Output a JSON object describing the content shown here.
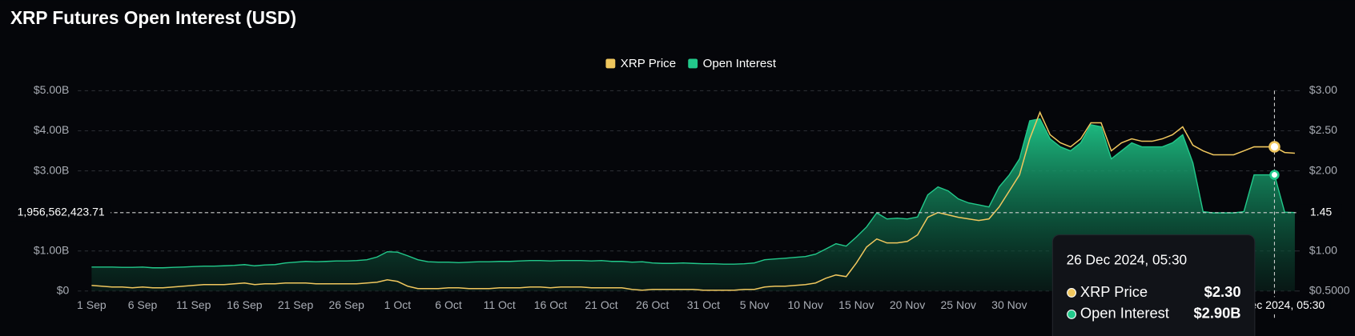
{
  "chart_data": {
    "type": "area-line",
    "title": "XRP Futures Open Interest (USD)",
    "categories": [
      "1 Sep",
      null,
      null,
      null,
      null,
      "6 Sep",
      null,
      null,
      null,
      null,
      "11 Sep",
      null,
      null,
      null,
      null,
      "16 Sep",
      null,
      null,
      null,
      null,
      "21 Sep",
      null,
      null,
      null,
      null,
      "26 Sep",
      null,
      null,
      null,
      null,
      "1 Oct",
      null,
      null,
      null,
      null,
      "6 Oct",
      null,
      null,
      null,
      null,
      "11 Oct",
      null,
      null,
      null,
      null,
      "16 Oct",
      null,
      null,
      null,
      null,
      "21 Oct",
      null,
      null,
      null,
      null,
      "26 Oct",
      null,
      null,
      null,
      null,
      "31 Oct",
      null,
      null,
      null,
      null,
      "5 Nov",
      null,
      null,
      null,
      null,
      "10 Nov",
      null,
      null,
      null,
      null,
      "15 Nov",
      null,
      null,
      null,
      null,
      "20 Nov",
      null,
      null,
      null,
      null,
      "25 Nov",
      null,
      null,
      null,
      null,
      "30 Nov",
      null,
      null,
      null,
      null,
      null,
      null,
      null,
      null,
      null,
      null,
      null,
      null,
      null,
      null,
      null,
      null,
      null,
      null,
      null,
      null,
      null,
      null,
      null,
      null,
      null,
      null,
      null,
      null
    ],
    "series": [
      {
        "name": "XRP Price",
        "color": "#f0c75e",
        "axis": "y2",
        "values": [
          0.57,
          0.56,
          0.55,
          0.55,
          0.54,
          0.55,
          0.54,
          0.54,
          0.55,
          0.56,
          0.57,
          0.58,
          0.58,
          0.58,
          0.59,
          0.6,
          0.58,
          0.59,
          0.59,
          0.6,
          0.6,
          0.6,
          0.59,
          0.59,
          0.59,
          0.59,
          0.59,
          0.6,
          0.61,
          0.64,
          0.62,
          0.56,
          0.53,
          0.53,
          0.53,
          0.54,
          0.54,
          0.53,
          0.53,
          0.53,
          0.54,
          0.54,
          0.54,
          0.55,
          0.55,
          0.54,
          0.55,
          0.55,
          0.55,
          0.54,
          0.54,
          0.54,
          0.54,
          0.52,
          0.51,
          0.52,
          0.52,
          0.52,
          0.52,
          0.52,
          0.51,
          0.51,
          0.51,
          0.51,
          0.52,
          0.52,
          0.55,
          0.56,
          0.56,
          0.57,
          0.58,
          0.6,
          0.66,
          0.7,
          0.68,
          0.85,
          1.05,
          1.15,
          1.1,
          1.1,
          1.12,
          1.2,
          1.42,
          1.48,
          1.45,
          1.42,
          1.4,
          1.38,
          1.4,
          1.55,
          1.75,
          1.95,
          2.4,
          2.73,
          2.45,
          2.35,
          2.3,
          2.4,
          2.6,
          2.6,
          2.25,
          2.35,
          2.4,
          2.37,
          2.37,
          2.4,
          2.45,
          2.55,
          2.32,
          2.25,
          2.2,
          2.2,
          2.2,
          2.25,
          2.3,
          2.3,
          2.3,
          2.23,
          2.22
        ]
      },
      {
        "name": "Open Interest",
        "color": "#22c98b",
        "values": [
          600000000,
          600000000,
          600000000,
          590000000,
          590000000,
          600000000,
          580000000,
          580000000,
          590000000,
          600000000,
          610000000,
          620000000,
          620000000,
          630000000,
          640000000,
          660000000,
          630000000,
          650000000,
          660000000,
          700000000,
          720000000,
          740000000,
          730000000,
          740000000,
          750000000,
          750000000,
          760000000,
          780000000,
          850000000,
          980000000,
          970000000,
          880000000,
          780000000,
          730000000,
          720000000,
          720000000,
          710000000,
          720000000,
          730000000,
          730000000,
          740000000,
          740000000,
          750000000,
          760000000,
          760000000,
          750000000,
          760000000,
          760000000,
          760000000,
          750000000,
          760000000,
          740000000,
          740000000,
          720000000,
          730000000,
          700000000,
          690000000,
          690000000,
          700000000,
          690000000,
          680000000,
          680000000,
          670000000,
          670000000,
          680000000,
          700000000,
          780000000,
          800000000,
          820000000,
          840000000,
          860000000,
          920000000,
          1050000000,
          1180000000,
          1120000000,
          1350000000,
          1600000000,
          1950000000,
          1800000000,
          1820000000,
          1800000000,
          1850000000,
          2400000000,
          2600000000,
          2500000000,
          2300000000,
          2200000000,
          2150000000,
          2100000000,
          2600000000,
          2900000000,
          3300000000,
          4250000000,
          4300000000,
          3800000000,
          3600000000,
          3500000000,
          3700000000,
          4150000000,
          4100000000,
          3300000000,
          3500000000,
          3700000000,
          3600000000,
          3600000000,
          3600000000,
          3700000000,
          3900000000,
          3200000000,
          1980000000,
          1950000000,
          1950000000,
          1950000000,
          1980000000,
          2900000000,
          2900000000,
          2900000000,
          1970000000,
          1960000000
        ]
      }
    ],
    "ylim": [
      0,
      5000000000
    ],
    "yticks": [
      {
        "value": 0,
        "label": "$0"
      },
      {
        "value": 1000000000,
        "label": "$1.00B"
      },
      {
        "value": 3000000000,
        "label": "$3.00B"
      },
      {
        "value": 4000000000,
        "label": "$4.00B"
      },
      {
        "value": 5000000000,
        "label": "$5.00B"
      }
    ],
    "y2lim": [
      0.5,
      3.0
    ],
    "y2ticks": [
      {
        "value": 0.5,
        "label": "$0.5000"
      },
      {
        "value": 1,
        "label": "$1.00"
      },
      {
        "value": 2,
        "label": "$2.00"
      },
      {
        "value": 2.5,
        "label": "$2.50"
      },
      {
        "value": 3,
        "label": "$3.00"
      }
    ],
    "grid": true,
    "legend": "top",
    "crosshair": {
      "index": 116,
      "x_label": "26 Dec 2024, 05:30",
      "y": {
        "value": 1956562423.71,
        "label": "1,956,562,423.71"
      },
      "y2_label": "1.45"
    },
    "tooltip_values": [
      "$2.30",
      "$2.90B"
    ]
  }
}
